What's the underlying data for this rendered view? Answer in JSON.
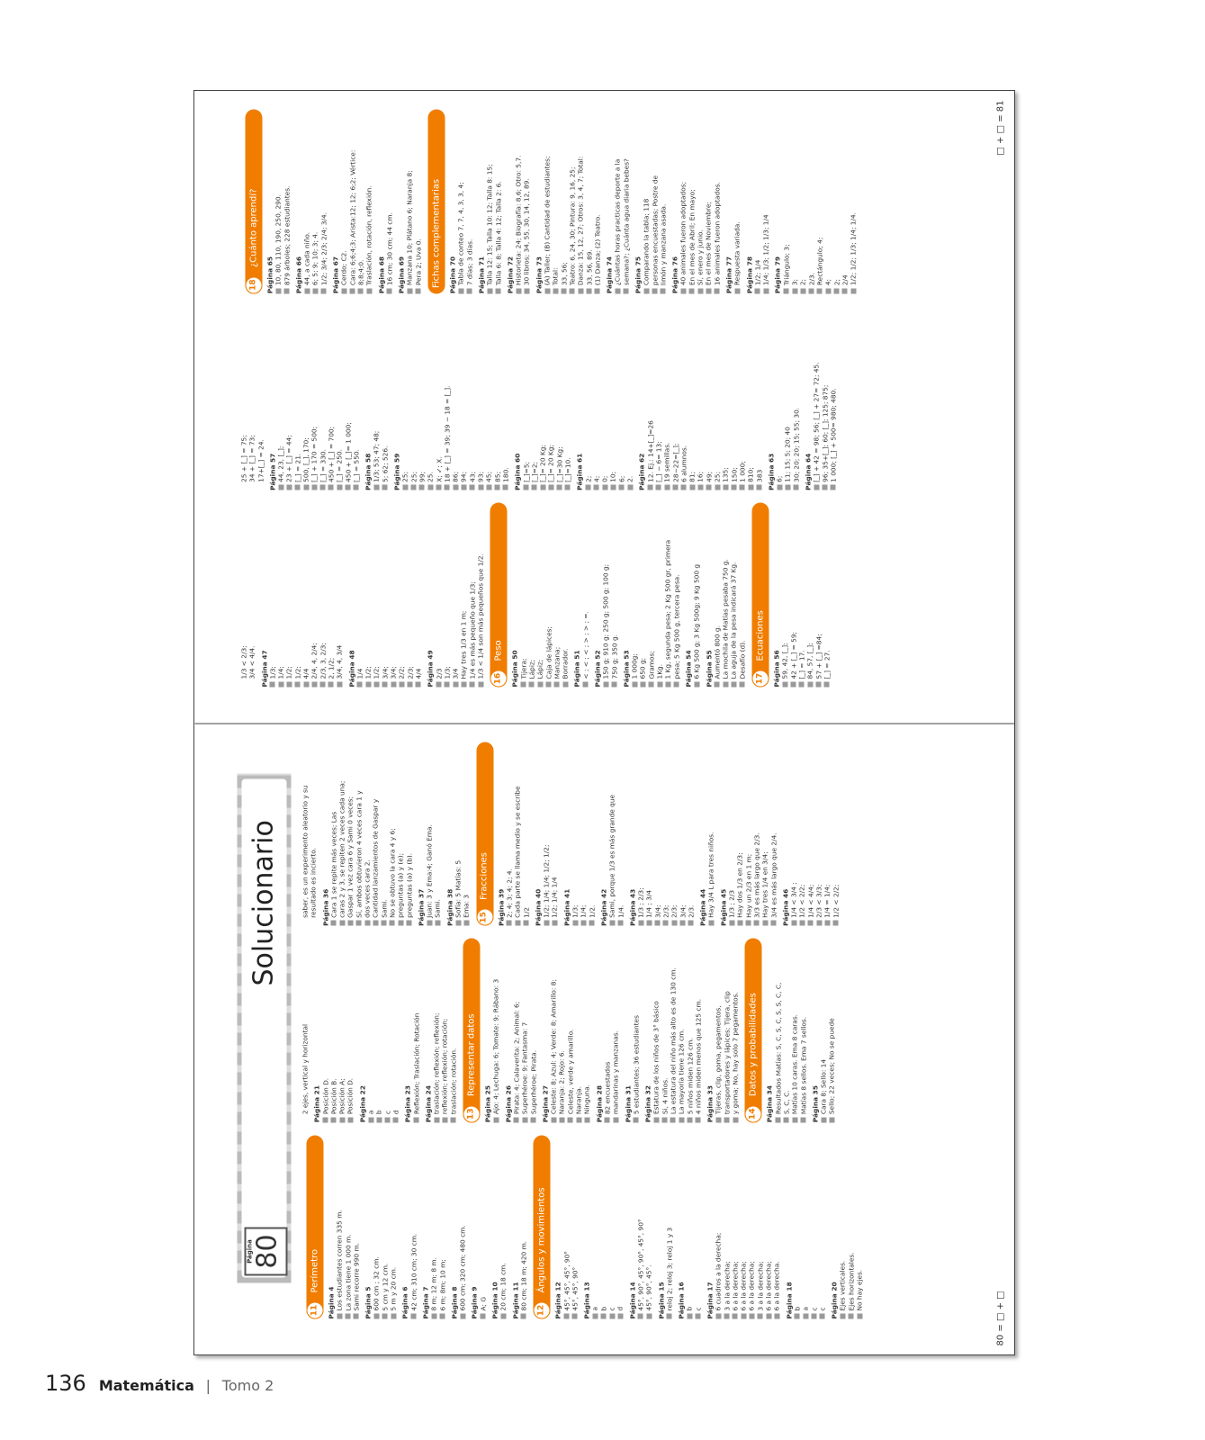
{
  "book_footer": {
    "page_number": "136",
    "subject": "Matemática",
    "volume": "Tomo 2"
  },
  "left_page": {
    "page_label": "Página",
    "page_number": "80",
    "title": "Solucionario",
    "footer": "80 = □ + □",
    "columns": [
      [
        {
          "num": "11",
          "heading": "Perímetro"
        },
        {
          "page": "Página 4",
          "lines": [
            "Los estudiantes corren 335 m.",
            "La zona tiene 1 000 m.",
            "Sami recorre 990 m."
          ]
        },
        {
          "page": "Página 5",
          "lines": [
            "600 cm ; 32 cm.",
            "5 cm y 12 cm.",
            "5 m y 20 cm."
          ]
        },
        {
          "page": "Página 6",
          "lines": [
            "42 cm; 310 cm; 30 cm."
          ]
        },
        {
          "page": "Página 7",
          "lines": [
            "8 m; 12 m; 8 m.",
            "6 m; 8m; 10 m;"
          ]
        },
        {
          "page": "Página 8",
          "lines": [
            "600 cm; 320 cm; 480 cm."
          ]
        },
        {
          "page": "Página 9",
          "lines": [
            "A; G"
          ]
        },
        {
          "page": "Página 10",
          "lines": [
            "20 cm; 18 cm."
          ]
        },
        {
          "page": "Página 11",
          "lines": [
            "80 cm; 18 m; 420 m."
          ]
        },
        {
          "num": "12",
          "heading": "Ángulos y movimientos"
        },
        {
          "page": "Página 12",
          "lines": [
            "45°, 45°, 45°, 90°",
            "45°, 45°, 90°"
          ]
        },
        {
          "page": "Página 13",
          "lines": [
            "a",
            "b",
            "c",
            "d"
          ]
        },
        {
          "page": "Página 14",
          "lines": [
            "45°, 90°, 45°, 90°, 45°, 90°",
            "45°, 90°, 45°."
          ]
        },
        {
          "page": "Página 15",
          "lines": [
            "reloj 2; reloj 3; reloj 1 y 3"
          ]
        },
        {
          "page": "Página 16",
          "lines": [
            "b",
            "c"
          ]
        },
        {
          "page": "Página 17",
          "lines": [
            "6 cuadros a la derecha;",
            "3 a la derecha;",
            "6 a la derecha;",
            "6 a la derecha;",
            "6 a la derecha;",
            "3 a la derecha;",
            "6 a la derecha;",
            "6 a la derecha."
          ]
        },
        {
          "page": "Página 18",
          "lines": [
            "b",
            "a",
            "c",
            "c"
          ]
        },
        {
          "page": "Página 20",
          "lines": [
            "Ejes verticales.",
            "Ejes horizontales.",
            "No hay ejes."
          ]
        }
      ],
      [
        {
          "lines": [
            "2 ejes, vertical y horizontal"
          ]
        },
        {
          "page": "Página 21",
          "lines": [
            "Posición D.",
            "Posición B.",
            "Posición A;",
            "Posición D."
          ]
        },
        {
          "page": "Página 22",
          "lines": [
            "a",
            "b",
            "c",
            "d"
          ]
        },
        {
          "page": "Página 23",
          "lines": [
            "Reflexión; Traslación; Rotación"
          ]
        },
        {
          "page": "Página 24",
          "lines": [
            "traslación; reflexión; reflexión;",
            "reflexión; reflexión; rotación;",
            "traslación; rotación."
          ]
        },
        {
          "num": "13",
          "heading": "Representar datos"
        },
        {
          "page": "Página 25",
          "lines": [
            "Ajo: 4; Lechuga: 6; Tomate: 9; Rábano: 3"
          ]
        },
        {
          "page": "Página 26",
          "lines": [
            "Pirata: 4; Calaverita: 2; Animal: 6;",
            "Superhéroe: 9; Fantasma: 7",
            "Superhéroe; Pirata."
          ]
        },
        {
          "page": "Página 27",
          "lines": [
            "Celeste: 8; Azul: 4; Verde: 8; Amarillo: 8;",
            "Naranja: 2; Rojo: 6.",
            "Celeste, verde y amarillo.",
            "Naranja.",
            "Ninguna."
          ]
        },
        {
          "page": "Página 28",
          "lines": [
            "82 encuestados",
            "mandarinas y manzanas."
          ]
        },
        {
          "page": "Página 31",
          "lines": [
            "5 estudiantes; 36 estudiantes"
          ]
        },
        {
          "page": "Página 32",
          "lines": [
            "Estatura de los niños de 3° básico",
            "Si, 4 niños.",
            "La estatura del niño más alto es de 130 cm.",
            "La mayoría tiene 126 cm.",
            "5 niños miden 126 cm.",
            "4 niños miden menos que 125 cm."
          ]
        },
        {
          "page": "Página 33",
          "lines": [
            "Tijeras, clip, goma, pegamentos,",
            "transportadores y lápices; Tijera, clip",
            "y goma; No, hay solo 7 pegamentos."
          ]
        },
        {
          "num": "14",
          "heading": "Datos y probabilidades"
        },
        {
          "page": "Página 34",
          "lines": [
            "Resultados Matías: S, C, S, C, S, S, C, C,",
            "S, C, C.",
            "Matías 10 caras. Ema 8 caras.",
            "Matías 8 sellos. Ema 7 sellos."
          ]
        },
        {
          "page": "Página 35",
          "lines": [
            "Cara 8; Sello: 14",
            "Sello; 22 veces; No se puede"
          ]
        }
      ],
      [
        {
          "lines": [
            "saber, es un experimento aleatorio y su",
            "resultado es incierto."
          ]
        },
        {
          "page": "Página 36",
          "lines": [
            "Cara 1 se repite más veces; Las",
            "caras 2 y 3, se repiten 2 veces cada una;",
            "Gaspar 1 vez cara 6 y Sami 0 veces;",
            "Sí, ambos obtuvieron 4 veces cara 1 y",
            "dos veces cara 2.",
            "Cantidad lanzamientos de Gaspar y",
            "Sami.",
            "No se obtuvo la cara 4 y 6;",
            "preguntas (a) y (e);",
            "preguntas (a) y (b)."
          ]
        },
        {
          "page": "Página 37",
          "lines": [
            "Juan: 3 y Ema:4; Ganó Ema.",
            "Sami."
          ]
        },
        {
          "page": "Página 38",
          "lines": [
            "Sofía: 5 Matías: 5",
            "Ema: 3"
          ]
        },
        {
          "num": "15",
          "heading": "Fracciones"
        },
        {
          "page": "Página 39",
          "lines": [
            "2; 4; 3; 4; 2; 4.",
            "Cada parte se llama medio y se escribe",
            "1/2"
          ]
        },
        {
          "page": "Página 40",
          "lines": [
            "1/2; 1/4; 1/4; 1/2; 1/2;",
            "1/2; 1/4; 1/4"
          ]
        },
        {
          "page": "Página 41",
          "lines": [
            "1/3;",
            "1/4;",
            "1/2."
          ]
        },
        {
          "page": "Página 42",
          "lines": [
            "Sami, porque 1/3 es más grande que",
            "1/4."
          ]
        },
        {
          "page": "Página 43",
          "lines": [
            "1/3 ; 2/3;",
            "1/4 ; 3/4",
            "3/4;",
            "2/3;",
            "2/3;",
            "3/4;",
            "2/3."
          ]
        },
        {
          "page": "Página 44",
          "lines": [
            "Hay 3/4 L para tres niños."
          ]
        },
        {
          "page": "Página 45",
          "lines": [
            "1/3 ; 2/3",
            "Hay dos 1/3 en 2/3;",
            "Hay un 2/3 en 1 m;",
            "3/3 es más largo que 2/3.",
            "Hay tres 1/4 en 3/4;",
            "3/4 es más largo que 2/4."
          ]
        },
        {
          "page": "Página 46",
          "lines": [
            "1/4 < 3/4 ;",
            "1/2 < 2/2;",
            "1/4 < 4/4;",
            "2/3 < 3/3;",
            "1/4 = 1/4;",
            "1/2 < 2/2;"
          ]
        }
      ]
    ]
  },
  "right_page": {
    "footer": "□ + □ = 81",
    "columns": [
      [
        {
          "lines": [
            "1/3 < 2/3;",
            "3/4 < 4/4."
          ]
        },
        {
          "page": "Página 47",
          "lines": [
            "1/3;",
            "1/4;",
            "1/2;",
            "1/2;",
            "4/4",
            "2/4, 4, 2/4;",
            "2/3, 3, 2/3;",
            "2, 1/2;",
            "3/4, 4, 3/4"
          ]
        },
        {
          "page": "Página 48",
          "lines": [
            "1/4",
            "1/2;",
            "1/2;",
            "3/4;",
            "3/4;",
            "2/2;",
            "2/3;",
            "4/4"
          ]
        },
        {
          "page": "Página 49",
          "lines": [
            "2/3",
            "1/3;",
            "3/4",
            "Hay tres 1/3 en 1 m;",
            "1/4 es más pequeño que 1/3;",
            "1/3 < 1/4 son más pequeños que 1/2."
          ]
        },
        {
          "num": "16",
          "heading": "Peso"
        },
        {
          "page": "Página 50",
          "lines": [
            "Tijera;",
            "Lápiz;",
            "Lápiz;",
            "Caja de lápices;",
            "Manzana;",
            "Borrador."
          ]
        },
        {
          "page": "Página 51",
          "lines": [
            "< ; < ; < ; > ; > ; =."
          ]
        },
        {
          "page": "Página 52",
          "lines": [
            "150 g; 910 g; 250 g; 500 g; 100 g;",
            "750 g; 350 g."
          ]
        },
        {
          "page": "Página 53",
          "lines": [
            "1 000g;",
            "650 g;",
            "Gramos;",
            "1Kg.",
            "1 Kg, segunda pesa; 2 Kg 500 gr, primera",
            "pesa; 5 Kg 500 g, tercera pesa."
          ]
        },
        {
          "page": "Página 54",
          "lines": [
            "6 Kg 500 g; 3 Kg 500g; 9 Kg 500 g"
          ]
        },
        {
          "page": "Página 55",
          "lines": [
            "Aumentó 800 g.",
            "La mochila de Matías pesaba 750 g.",
            "La aguja de la pesa indicará 37 Kg.",
            "Desafío (d)."
          ]
        },
        {
          "num": "17",
          "heading": "Ecuaciones"
        },
        {
          "page": "Página 56",
          "lines": [
            "59, 42, [_];",
            "42 + [_] = 59;",
            "[_] = 17.",
            "84, 57, [_];",
            "57 + [_] =84;",
            "[_] = 27."
          ]
        }
      ],
      [
        {
          "lines": [
            "25 + [_] = 75;",
            "34 + [_] = 73;",
            "17+[_] = 24."
          ]
        },
        {
          "page": "Página 57",
          "lines": [
            "44, 23, [_];",
            "23 + [_] = 44;",
            "[_] = 21.",
            "500, [_], 170;",
            "[_] + 170 = 500;",
            "[_] = 330.",
            "450 + [_] = 700;",
            "[_] = 250.",
            "450 + [_]= 1 000;",
            "[_] = 550."
          ]
        },
        {
          "page": "Página 58",
          "lines": [
            "1/3; 53; 47; 48;",
            "5; 62; 526."
          ]
        },
        {
          "page": "Página 59",
          "lines": [
            "25;",
            "25;",
            "99;",
            "25.",
            "X; ✓; X.",
            "18 + [_] = 39; 39 − 18 = [_].",
            "86;",
            "94;",
            "43;",
            "93;",
            "45;",
            "85;",
            "180."
          ]
        },
        {
          "page": "Página 60",
          "lines": [
            "[_]=5;",
            "[_]=2;",
            "[_]= 20 Kg;",
            "[_]= 20 Kg;",
            "[_]=30 Kg;",
            "[_]=10."
          ]
        },
        {
          "page": "Página 61",
          "lines": [
            "2;",
            "4;",
            "0;",
            "10;",
            "6;",
            "2."
          ]
        },
        {
          "page": "Página 62",
          "lines": [
            "12. Ej.: 14+[_]=26",
            "[_] − 6= 13;",
            "19 semillas.",
            "28−22=[_];",
            "6 alumnos.",
            "81;",
            "16;",
            "49;",
            "25;",
            "135;",
            "150;",
            "1 000;",
            "810;",
            "383"
          ]
        },
        {
          "page": "Página 63",
          "lines": [
            "6;",
            "11; 15; 5; 20; 40",
            "30; 20; 20; 15; 55; 30."
          ]
        },
        {
          "page": "Página 64",
          "lines": [
            "[_] + 42 = 98; 56; [_] + 27= 72; 45.",
            "96; 35+[_]; 60; [_]; 125; 875;",
            "1 000; [_] + 500= 980; 480."
          ]
        }
      ],
      [
        {
          "num": "18",
          "heading": "¿Cuánto aprendí?"
        },
        {
          "page": "Página 65",
          "lines": [
            "10, 80, 110, 190, 250, 290.",
            "879 árboles; 228 estudiantes."
          ]
        },
        {
          "page": "Página 66",
          "lines": [
            "44, a cada niño.",
            "6; 5; 9; 10; 3; 4.",
            "1/2; 3/4; 2/3; 2/4; 3/4."
          ]
        },
        {
          "page": "Página 67",
          "lines": [
            "Cerdo; C2.",
            "Cara: 6;6;4;3; Arista:12; 12; 6;2; Vértice:",
            "8;8;4;0.",
            "Traslación, rotación, reflexión."
          ]
        },
        {
          "page": "Página 68",
          "lines": [
            "16 cm; 30 cm; 44 cm."
          ]
        },
        {
          "page": "Página 69",
          "lines": [
            "Manzana 10; Plátano 6; Naranja 8;",
            "Pera 2; Uva 0."
          ]
        },
        {
          "heading": "Fichas complementarias"
        },
        {
          "page": "Página 70",
          "lines": [
            "Tabla de conteo 7, 7, 4, 3, 3, 4;",
            "7 días; 3 días."
          ]
        },
        {
          "page": "Página 71",
          "lines": [
            "Talla 12: 15; Talla 10: 12; Talla 8: 15;",
            "Talla 6: 8; Talla 4: 12; Talla 2: 6."
          ]
        },
        {
          "page": "Página 72",
          "lines": [
            "Historieta: 24; Biografía: 8,6; Otro: 5,7.",
            "30 libros; 34, 55, 30, 14, 12, 89."
          ]
        },
        {
          "page": "Página 73",
          "lines": [
            "(A) Taller; (B) Cantidad de estudiantes;",
            "Total:",
            "33, 56;",
            "Teatro: 6, 24, 30; Pintura: 9, 16, 25;",
            "Danza: 15, 12, 27; Otros: 3, 4, 7; Total:",
            "33, 56, 89.",
            "(1) Danza; (2) Teatro."
          ]
        },
        {
          "page": "Página 74",
          "lines": [
            "¿Cuántas horas practicas deporte a la",
            "semana?; ¿Cuánta agua diaria bebes?"
          ]
        },
        {
          "page": "Página 75",
          "lines": [
            "Comparando la tabla; 118",
            "personas encuestadas; Postre de",
            "limón y manzana asada."
          ]
        },
        {
          "page": "Página 76",
          "lines": [
            "40 animales fueron adoptados;",
            "En el mes de Abril; En mayo;",
            "Sí, enero y junio.",
            "En el mes de Noviembre;",
            "16 animales fueron adoptados."
          ]
        },
        {
          "page": "Página 77",
          "lines": [
            "Respuesta variada."
          ]
        },
        {
          "page": "Página 78",
          "lines": [
            "1/2; 1/4",
            "1/4; 1/3; 1/2; 1/3; 1/4"
          ]
        },
        {
          "page": "Página 79",
          "lines": [
            "Triángulo; 3;",
            "3;",
            "2;",
            "2/3.",
            "Rectángulo; 4;",
            "4;",
            "2;",
            "2/4",
            "1/2; 1/2; 1/3; 1/4; 1/4."
          ]
        }
      ]
    ]
  }
}
